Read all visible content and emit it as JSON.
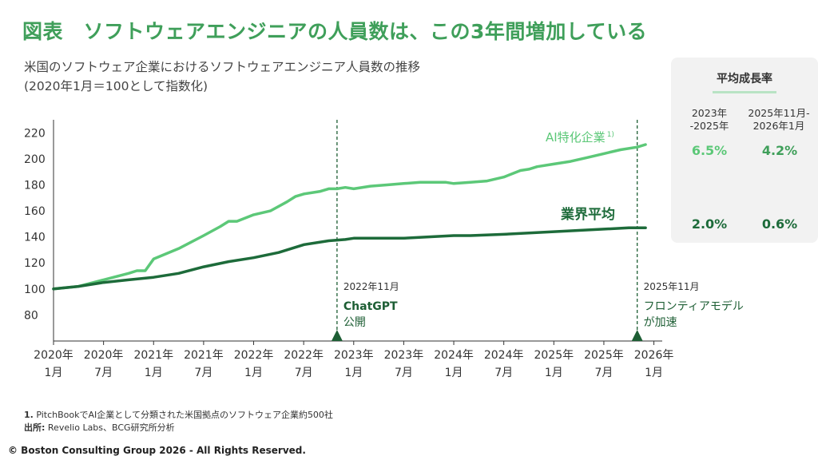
{
  "title": "図表　ソフトウェアエンジニアの人員数は、この3年間増加している",
  "subtitle_line1": "米国のソフトウェア企業におけるソフトウェアエンジニア人員数の推移",
  "subtitle_line2": "(2020年1月＝100として指数化)",
  "panel": {
    "title": "平均成長率",
    "col1_line1": "2023年",
    "col1_line2": "-2025年",
    "col2_line1": "2025年11月-",
    "col2_line2": "2026年1月",
    "ai_rate_1": "6.5%",
    "ai_rate_2": "4.2%",
    "avg_rate_1": "2.0%",
    "avg_rate_2": "0.6%"
  },
  "footnotes": {
    "note1_num": "1.",
    "note1": "PitchBookでAI企業として分類された米国拠点のソフトウェア企業約500社",
    "source_label": "出所:",
    "source": "Revelio Labs、BCG研究所分析"
  },
  "copyright": "© Boston Consulting Group 2026 - All Rights Reserved.",
  "colors": {
    "ai_series": "#5cc878",
    "avg_series": "#1d6b3a",
    "title": "#3f9f5a",
    "annotation": "#1d5e34"
  },
  "chart_data": {
    "type": "line",
    "ylim": [
      60,
      230
    ],
    "yticks": [
      80,
      100,
      120,
      140,
      160,
      180,
      200,
      220
    ],
    "x_range": [
      0,
      73
    ],
    "x_ticks": [
      {
        "x": 0,
        "l1": "2020年",
        "l2": "1月"
      },
      {
        "x": 6,
        "l1": "2020年",
        "l2": "7月"
      },
      {
        "x": 12,
        "l1": "2021年",
        "l2": "1月"
      },
      {
        "x": 18,
        "l1": "2021年",
        "l2": "7月"
      },
      {
        "x": 24,
        "l1": "2022年",
        "l2": "1月"
      },
      {
        "x": 30,
        "l1": "2022年",
        "l2": "7月"
      },
      {
        "x": 36,
        "l1": "2023年",
        "l2": "1月"
      },
      {
        "x": 42,
        "l1": "2023年",
        "l2": "7月"
      },
      {
        "x": 48,
        "l1": "2024年",
        "l2": "1月"
      },
      {
        "x": 54,
        "l1": "2024年",
        "l2": "7月"
      },
      {
        "x": 60,
        "l1": "2025年",
        "l2": "1月"
      },
      {
        "x": 66,
        "l1": "2025年",
        "l2": "7月"
      },
      {
        "x": 72,
        "l1": "2026年",
        "l2": "1月"
      }
    ],
    "series": [
      {
        "name": "AI特化企業",
        "superscript": "1)",
        "color": "#5cc878",
        "x": [
          0,
          3,
          6,
          9,
          10,
          11,
          12,
          15,
          18,
          20,
          21,
          22,
          24,
          26,
          28,
          29,
          30,
          32,
          33,
          34,
          35,
          36,
          38,
          40,
          42,
          44,
          46,
          47,
          48,
          50,
          52,
          54,
          56,
          57,
          58,
          60,
          62,
          64,
          66,
          68,
          70,
          71
        ],
        "y": [
          100,
          102,
          107,
          112,
          114,
          114,
          123,
          131,
          141,
          148,
          152,
          152,
          157,
          160,
          167,
          171,
          173,
          175,
          177,
          177,
          178,
          177,
          179,
          180,
          181,
          182,
          182,
          182,
          181,
          182,
          183,
          186,
          191,
          192,
          194,
          196,
          198,
          201,
          204,
          207,
          209,
          211
        ]
      },
      {
        "name": "業界平均",
        "color": "#1d6b3a",
        "x": [
          0,
          3,
          6,
          9,
          12,
          15,
          18,
          21,
          24,
          27,
          30,
          33,
          35,
          36,
          38,
          40,
          42,
          45,
          48,
          50,
          54,
          57,
          60,
          63,
          66,
          69,
          71
        ],
        "y": [
          100,
          102,
          105,
          107,
          109,
          112,
          117,
          121,
          124,
          128,
          134,
          137,
          138,
          139,
          139,
          139,
          139,
          140,
          141,
          141,
          142,
          143,
          144,
          145,
          146,
          147,
          147
        ]
      }
    ],
    "annotations": [
      {
        "x": 34,
        "line1": "2022年11月",
        "line2": "ChatGPT",
        "line3": "公開"
      },
      {
        "x": 70,
        "line1": "2025年11月",
        "line2": "フロンティアモデル",
        "line3": "が加速"
      }
    ]
  }
}
